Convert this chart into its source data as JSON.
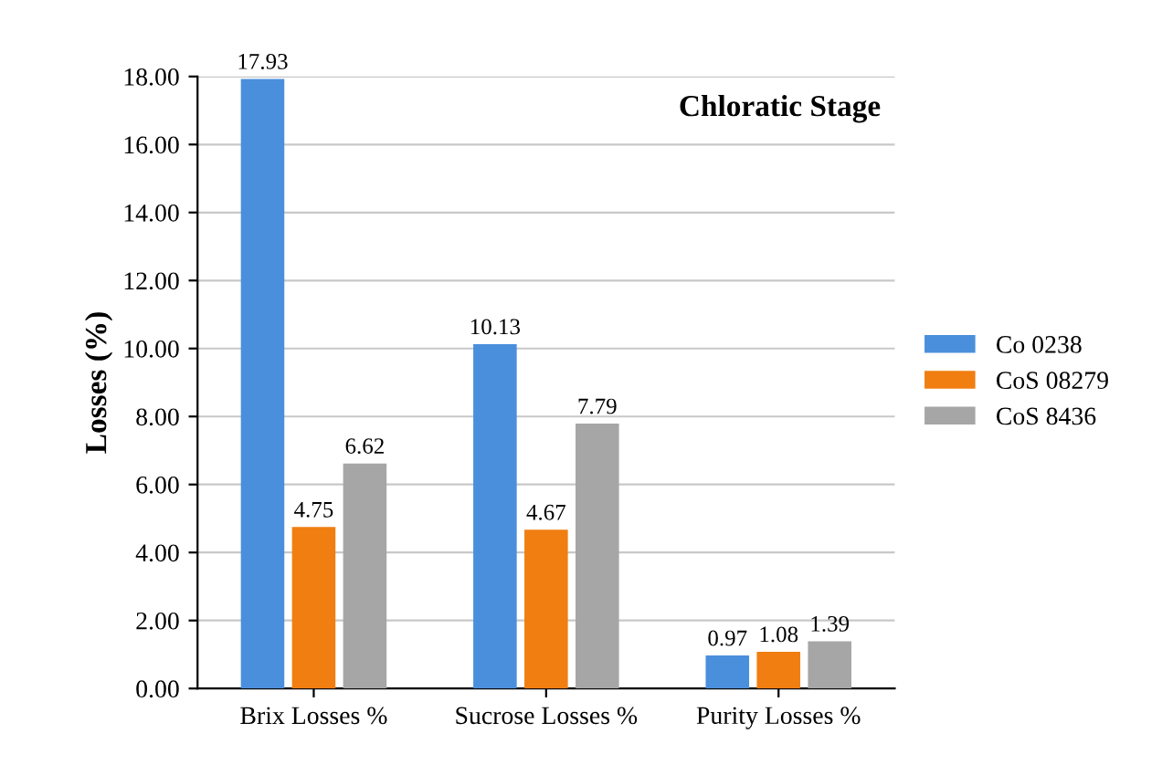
{
  "chart_data": {
    "type": "bar",
    "title": "Chloratic Stage",
    "ylabel": "Losses (%)",
    "categories": [
      "Brix Losses %",
      "Sucrose Losses %",
      "Purity Losses %"
    ],
    "series": [
      {
        "name": "Co 0238",
        "color": "#4a8fdc",
        "values": [
          17.93,
          10.13,
          0.97
        ]
      },
      {
        "name": "CoS 08279",
        "color": "#f07e10",
        "values": [
          4.75,
          4.67,
          1.08
        ]
      },
      {
        "name": "CoS 8436",
        "color": "#a6a6a6",
        "values": [
          6.62,
          7.79,
          1.39
        ]
      }
    ],
    "ylim": [
      0,
      18
    ],
    "yticks": [
      {
        "value": 0,
        "label": "0.00"
      },
      {
        "value": 2,
        "label": "2.00"
      },
      {
        "value": 4,
        "label": "4.00"
      },
      {
        "value": 6,
        "label": "6.00"
      },
      {
        "value": 8,
        "label": "8.00"
      },
      {
        "value": 10,
        "label": "10.00"
      },
      {
        "value": 12,
        "label": "12.00"
      },
      {
        "value": 14,
        "label": "14.00"
      },
      {
        "value": 16,
        "label": "16.00"
      },
      {
        "value": 18,
        "label": "18.00"
      }
    ],
    "grid": "y",
    "legend": "right",
    "data_labels": true
  }
}
